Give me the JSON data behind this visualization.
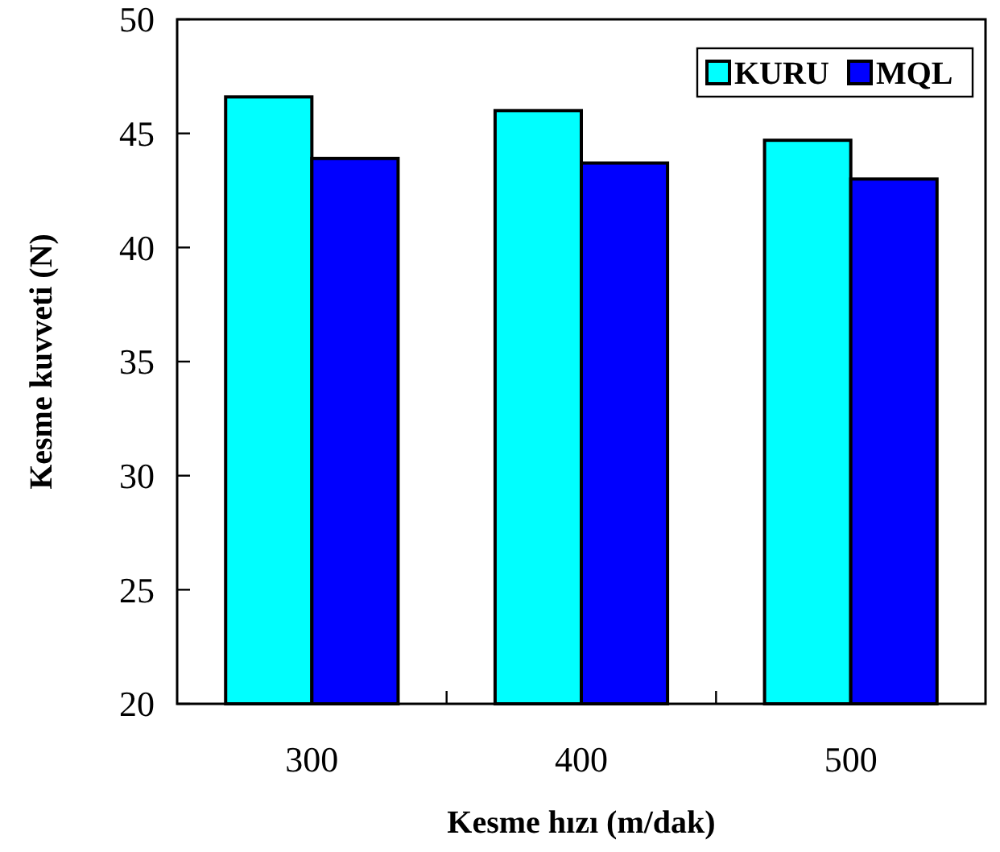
{
  "chart_data": {
    "type": "bar",
    "xlabel": "Kesme hızı (m/dak)",
    "ylabel": "Kesme kuvveti (N)",
    "categories": [
      "300",
      "400",
      "500"
    ],
    "series": [
      {
        "name": "KURU",
        "color": "#00ffff",
        "values": [
          46.6,
          46.0,
          44.7
        ]
      },
      {
        "name": "MQL",
        "color": "#0000ff",
        "values": [
          43.9,
          43.7,
          43.0
        ]
      }
    ],
    "ylim": [
      20,
      50
    ],
    "yticks": [
      20,
      25,
      30,
      35,
      40,
      45,
      50
    ],
    "grid": false,
    "legend": "top right"
  }
}
